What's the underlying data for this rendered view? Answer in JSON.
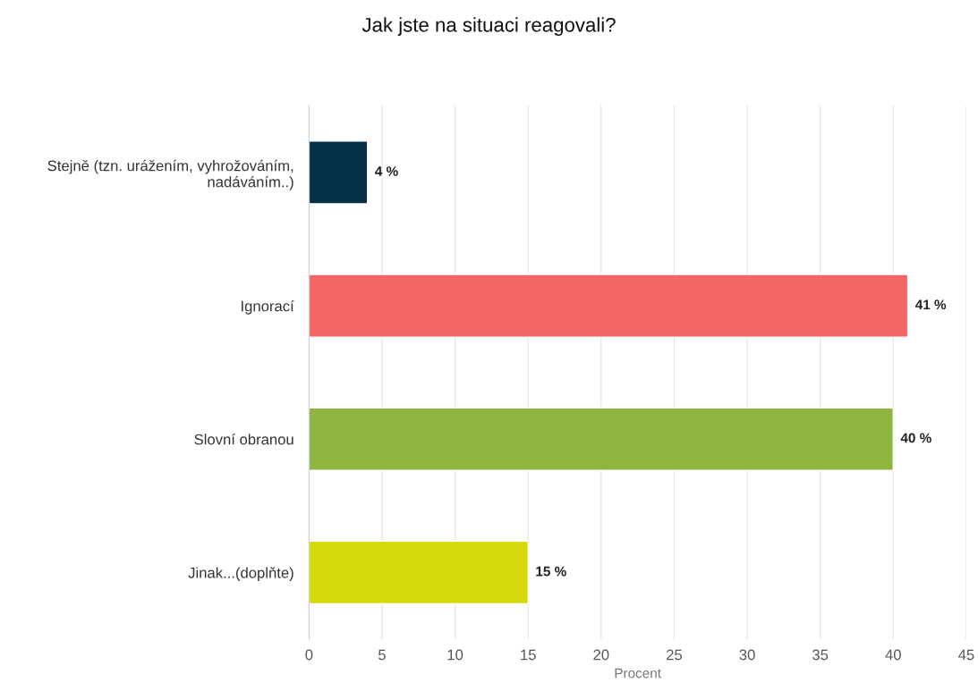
{
  "chart_data": {
    "type": "bar",
    "orientation": "horizontal",
    "title": "Jak jste na situaci reagovali?",
    "xlabel": "Procent",
    "categories": [
      "Stejně (tzn. urážením, vyhrožováním,\nnadáváním..)",
      "Ignorací",
      "Slovní obranou",
      "Jinak...(doplňte)"
    ],
    "values": [
      4,
      41,
      40,
      15
    ],
    "value_labels": [
      "4 %",
      "41 %",
      "40 %",
      "15 %"
    ],
    "colors": [
      "#06304a",
      "#f46666",
      "#8fb543",
      "#d6d90d"
    ],
    "xlim": [
      0,
      45
    ],
    "xticks": [
      0,
      5,
      10,
      15,
      20,
      25,
      30,
      35,
      40,
      45
    ],
    "grid": "x",
    "legend": false
  }
}
